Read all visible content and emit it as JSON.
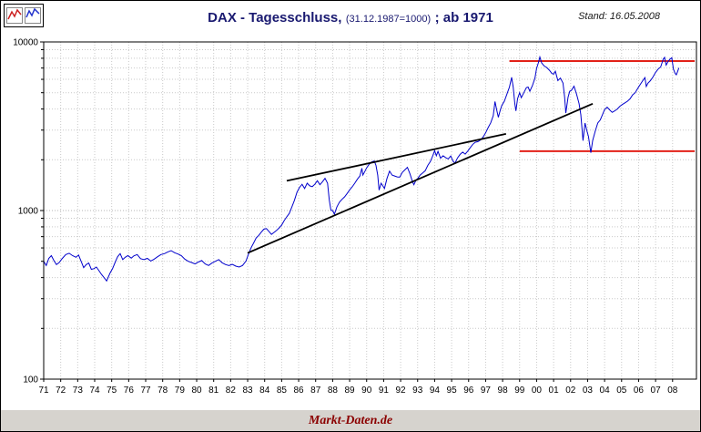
{
  "header": {
    "title_main": "DAX - Tagesschluss,",
    "title_paren": "(31.12.1987=1000)",
    "title_suffix": "; ab 1971",
    "title_color": "#191970",
    "stand": "Stand: 16.05.2008"
  },
  "footer": {
    "brand": "Markt-Daten.de",
    "brand_color": "#8b0000"
  },
  "chart_data": {
    "type": "line",
    "title": "DAX - Tagesschluss, (31.12.1987=1000) ; ab 1971",
    "subtitle": "Stand: 16.05.2008",
    "y_scale": "log",
    "ylim": [
      100,
      10000
    ],
    "y_ticks": [
      100,
      1000,
      10000
    ],
    "y_grid_minor": [
      200,
      300,
      400,
      500,
      600,
      700,
      800,
      900,
      2000,
      3000,
      4000,
      5000,
      6000,
      7000,
      8000,
      9000
    ],
    "x_start_year": 1971,
    "x_tick_labels": [
      "71",
      "72",
      "73",
      "74",
      "75",
      "76",
      "77",
      "78",
      "79",
      "80",
      "81",
      "82",
      "83",
      "84",
      "85",
      "86",
      "87",
      "88",
      "89",
      "90",
      "91",
      "92",
      "93",
      "94",
      "95",
      "96",
      "97",
      "98",
      "99",
      "00",
      "01",
      "02",
      "03",
      "04",
      "05",
      "06",
      "07",
      "08"
    ],
    "grid": true,
    "legend": "none",
    "colors": {
      "series": "#0000cc",
      "trendline": "#000000",
      "resistance": "#e22118",
      "grid": "#c9c9c9",
      "grid_major": "#b5b5b5"
    },
    "series": [
      {
        "name": "DAX Tagesschluss",
        "color": "#0000cc",
        "points": [
          [
            1971.0,
            500
          ],
          [
            1971.15,
            472
          ],
          [
            1971.3,
            520
          ],
          [
            1971.45,
            540
          ],
          [
            1971.6,
            505
          ],
          [
            1971.75,
            478
          ],
          [
            1971.9,
            490
          ],
          [
            1972.1,
            520
          ],
          [
            1972.3,
            548
          ],
          [
            1972.5,
            558
          ],
          [
            1972.7,
            540
          ],
          [
            1972.9,
            528
          ],
          [
            1973.05,
            545
          ],
          [
            1973.2,
            500
          ],
          [
            1973.35,
            458
          ],
          [
            1973.5,
            478
          ],
          [
            1973.65,
            488
          ],
          [
            1973.8,
            448
          ],
          [
            1973.95,
            452
          ],
          [
            1974.1,
            462
          ],
          [
            1974.25,
            440
          ],
          [
            1974.4,
            418
          ],
          [
            1974.55,
            400
          ],
          [
            1974.7,
            382
          ],
          [
            1974.8,
            402
          ],
          [
            1974.9,
            425
          ],
          [
            1975.05,
            452
          ],
          [
            1975.2,
            492
          ],
          [
            1975.35,
            532
          ],
          [
            1975.5,
            555
          ],
          [
            1975.65,
            512
          ],
          [
            1975.8,
            528
          ],
          [
            1975.95,
            540
          ],
          [
            1976.15,
            522
          ],
          [
            1976.3,
            538
          ],
          [
            1976.5,
            548
          ],
          [
            1976.7,
            518
          ],
          [
            1976.9,
            512
          ],
          [
            1977.1,
            520
          ],
          [
            1977.3,
            502
          ],
          [
            1977.5,
            515
          ],
          [
            1977.7,
            532
          ],
          [
            1977.9,
            548
          ],
          [
            1978.1,
            555
          ],
          [
            1978.3,
            568
          ],
          [
            1978.5,
            578
          ],
          [
            1978.7,
            562
          ],
          [
            1978.9,
            552
          ],
          [
            1979.1,
            540
          ],
          [
            1979.3,
            515
          ],
          [
            1979.5,
            500
          ],
          [
            1979.7,
            492
          ],
          [
            1979.9,
            482
          ],
          [
            1980.1,
            495
          ],
          [
            1980.3,
            505
          ],
          [
            1980.5,
            482
          ],
          [
            1980.7,
            472
          ],
          [
            1980.9,
            488
          ],
          [
            1981.1,
            500
          ],
          [
            1981.3,
            512
          ],
          [
            1981.5,
            490
          ],
          [
            1981.7,
            478
          ],
          [
            1981.9,
            472
          ],
          [
            1982.1,
            480
          ],
          [
            1982.3,
            468
          ],
          [
            1982.5,
            462
          ],
          [
            1982.7,
            472
          ],
          [
            1982.9,
            502
          ],
          [
            1983.05,
            552
          ],
          [
            1983.2,
            602
          ],
          [
            1983.35,
            642
          ],
          [
            1983.5,
            688
          ],
          [
            1983.65,
            712
          ],
          [
            1983.8,
            745
          ],
          [
            1983.95,
            775
          ],
          [
            1984.1,
            782
          ],
          [
            1984.25,
            752
          ],
          [
            1984.4,
            722
          ],
          [
            1984.55,
            742
          ],
          [
            1984.7,
            762
          ],
          [
            1984.85,
            788
          ],
          [
            1985.0,
            820
          ],
          [
            1985.15,
            872
          ],
          [
            1985.3,
            918
          ],
          [
            1985.45,
            962
          ],
          [
            1985.6,
            1050
          ],
          [
            1985.75,
            1150
          ],
          [
            1985.9,
            1282
          ],
          [
            1986.05,
            1372
          ],
          [
            1986.2,
            1432
          ],
          [
            1986.35,
            1352
          ],
          [
            1986.5,
            1452
          ],
          [
            1986.65,
            1402
          ],
          [
            1986.8,
            1385
          ],
          [
            1986.95,
            1432
          ],
          [
            1987.1,
            1502
          ],
          [
            1987.25,
            1422
          ],
          [
            1987.4,
            1482
          ],
          [
            1987.55,
            1552
          ],
          [
            1987.7,
            1452
          ],
          [
            1987.8,
            1152
          ],
          [
            1987.9,
            1002
          ],
          [
            1988.0,
            1000
          ],
          [
            1988.1,
            952
          ],
          [
            1988.25,
            1052
          ],
          [
            1988.4,
            1122
          ],
          [
            1988.55,
            1165
          ],
          [
            1988.7,
            1205
          ],
          [
            1988.85,
            1262
          ],
          [
            1989.0,
            1327
          ],
          [
            1989.15,
            1382
          ],
          [
            1989.3,
            1452
          ],
          [
            1989.45,
            1532
          ],
          [
            1989.6,
            1602
          ],
          [
            1989.72,
            1782
          ],
          [
            1989.78,
            1622
          ],
          [
            1989.9,
            1712
          ],
          [
            1990.0,
            1790
          ],
          [
            1990.15,
            1882
          ],
          [
            1990.3,
            1942
          ],
          [
            1990.45,
            1968
          ],
          [
            1990.55,
            1852
          ],
          [
            1990.65,
            1622
          ],
          [
            1990.73,
            1322
          ],
          [
            1990.85,
            1452
          ],
          [
            1990.95,
            1402
          ],
          [
            1991.05,
            1352
          ],
          [
            1991.2,
            1552
          ],
          [
            1991.35,
            1712
          ],
          [
            1991.5,
            1622
          ],
          [
            1991.65,
            1602
          ],
          [
            1991.8,
            1582
          ],
          [
            1991.95,
            1578
          ],
          [
            1992.1,
            1682
          ],
          [
            1992.25,
            1742
          ],
          [
            1992.4,
            1805
          ],
          [
            1992.55,
            1652
          ],
          [
            1992.7,
            1482
          ],
          [
            1992.78,
            1422
          ],
          [
            1992.9,
            1512
          ],
          [
            1993.0,
            1545
          ],
          [
            1993.15,
            1622
          ],
          [
            1993.3,
            1672
          ],
          [
            1993.45,
            1722
          ],
          [
            1993.6,
            1852
          ],
          [
            1993.75,
            1952
          ],
          [
            1993.9,
            2122
          ],
          [
            1994.0,
            2266
          ],
          [
            1994.1,
            2112
          ],
          [
            1994.2,
            2242
          ],
          [
            1994.35,
            2042
          ],
          [
            1994.5,
            2112
          ],
          [
            1994.65,
            2062
          ],
          [
            1994.8,
            2022
          ],
          [
            1994.95,
            2105
          ],
          [
            1995.1,
            1952
          ],
          [
            1995.2,
            1912
          ],
          [
            1995.35,
            2052
          ],
          [
            1995.5,
            2152
          ],
          [
            1995.65,
            2222
          ],
          [
            1995.8,
            2162
          ],
          [
            1995.95,
            2252
          ],
          [
            1996.1,
            2362
          ],
          [
            1996.25,
            2472
          ],
          [
            1996.4,
            2542
          ],
          [
            1996.55,
            2562
          ],
          [
            1996.7,
            2622
          ],
          [
            1996.85,
            2722
          ],
          [
            1997.0,
            2889
          ],
          [
            1997.15,
            3102
          ],
          [
            1997.3,
            3312
          ],
          [
            1997.45,
            3652
          ],
          [
            1997.55,
            4432
          ],
          [
            1997.65,
            3952
          ],
          [
            1997.75,
            3572
          ],
          [
            1997.85,
            3902
          ],
          [
            1997.95,
            4202
          ],
          [
            1998.1,
            4452
          ],
          [
            1998.25,
            4902
          ],
          [
            1998.4,
            5402
          ],
          [
            1998.53,
            6172
          ],
          [
            1998.62,
            5402
          ],
          [
            1998.72,
            4302
          ],
          [
            1998.78,
            3896
          ],
          [
            1998.88,
            4602
          ],
          [
            1999.0,
            5002
          ],
          [
            1999.1,
            4668
          ],
          [
            1999.25,
            5002
          ],
          [
            1999.4,
            5352
          ],
          [
            1999.5,
            5402
          ],
          [
            1999.6,
            5102
          ],
          [
            1999.75,
            5502
          ],
          [
            1999.9,
            6102
          ],
          [
            2000.0,
            6958
          ],
          [
            2000.1,
            7502
          ],
          [
            2000.19,
            8136
          ],
          [
            2000.3,
            7502
          ],
          [
            2000.45,
            7202
          ],
          [
            2000.6,
            7052
          ],
          [
            2000.75,
            6802
          ],
          [
            2000.9,
            6502
          ],
          [
            2001.0,
            6433
          ],
          [
            2001.1,
            6702
          ],
          [
            2001.25,
            5902
          ],
          [
            2001.4,
            6102
          ],
          [
            2001.55,
            5702
          ],
          [
            2001.65,
            4702
          ],
          [
            2001.72,
            3787
          ],
          [
            2001.85,
            4702
          ],
          [
            2001.95,
            5102
          ],
          [
            2002.05,
            5162
          ],
          [
            2002.2,
            5462
          ],
          [
            2002.35,
            4902
          ],
          [
            2002.5,
            4302
          ],
          [
            2002.6,
            3702
          ],
          [
            2002.73,
            2598
          ],
          [
            2002.85,
            3302
          ],
          [
            2002.95,
            2992
          ],
          [
            2003.05,
            2748
          ],
          [
            2003.19,
            2202
          ],
          [
            2003.3,
            2602
          ],
          [
            2003.45,
            2952
          ],
          [
            2003.6,
            3302
          ],
          [
            2003.75,
            3452
          ],
          [
            2003.9,
            3752
          ],
          [
            2004.0,
            3965
          ],
          [
            2004.15,
            4102
          ],
          [
            2004.3,
            3952
          ],
          [
            2004.45,
            3822
          ],
          [
            2004.6,
            3902
          ],
          [
            2004.75,
            4002
          ],
          [
            2004.9,
            4152
          ],
          [
            2005.05,
            4256
          ],
          [
            2005.2,
            4352
          ],
          [
            2005.35,
            4452
          ],
          [
            2005.5,
            4602
          ],
          [
            2005.65,
            4852
          ],
          [
            2005.8,
            5002
          ],
          [
            2005.95,
            5302
          ],
          [
            2006.1,
            5602
          ],
          [
            2006.25,
            5902
          ],
          [
            2006.37,
            6140
          ],
          [
            2006.45,
            5442
          ],
          [
            2006.55,
            5692
          ],
          [
            2006.7,
            5902
          ],
          [
            2006.85,
            6202
          ],
          [
            2007.0,
            6596
          ],
          [
            2007.15,
            6902
          ],
          [
            2007.3,
            7102
          ],
          [
            2007.45,
            7902
          ],
          [
            2007.53,
            8105
          ],
          [
            2007.62,
            7292
          ],
          [
            2007.75,
            7702
          ],
          [
            2007.85,
            7902
          ],
          [
            2007.95,
            8067
          ],
          [
            2008.05,
            6902
          ],
          [
            2008.15,
            6502
          ],
          [
            2008.22,
            6384
          ],
          [
            2008.3,
            6702
          ],
          [
            2008.37,
            7012
          ]
        ]
      }
    ],
    "trendlines": [
      {
        "name": "lower-wedge-trendline",
        "x1": 1983.0,
        "v1": 560,
        "x2": 2003.3,
        "v2": 4300
      },
      {
        "name": "upper-wedge-trendline",
        "x1": 1985.3,
        "v1": 1500,
        "x2": 1998.2,
        "v2": 2850
      }
    ],
    "resistance_levels": [
      {
        "name": "upper-resistance",
        "value": 7700,
        "x1": 1998.4,
        "x2": 2009.3
      },
      {
        "name": "lower-support",
        "value": 2250,
        "x1": 1999.0,
        "x2": 2009.3
      }
    ]
  }
}
